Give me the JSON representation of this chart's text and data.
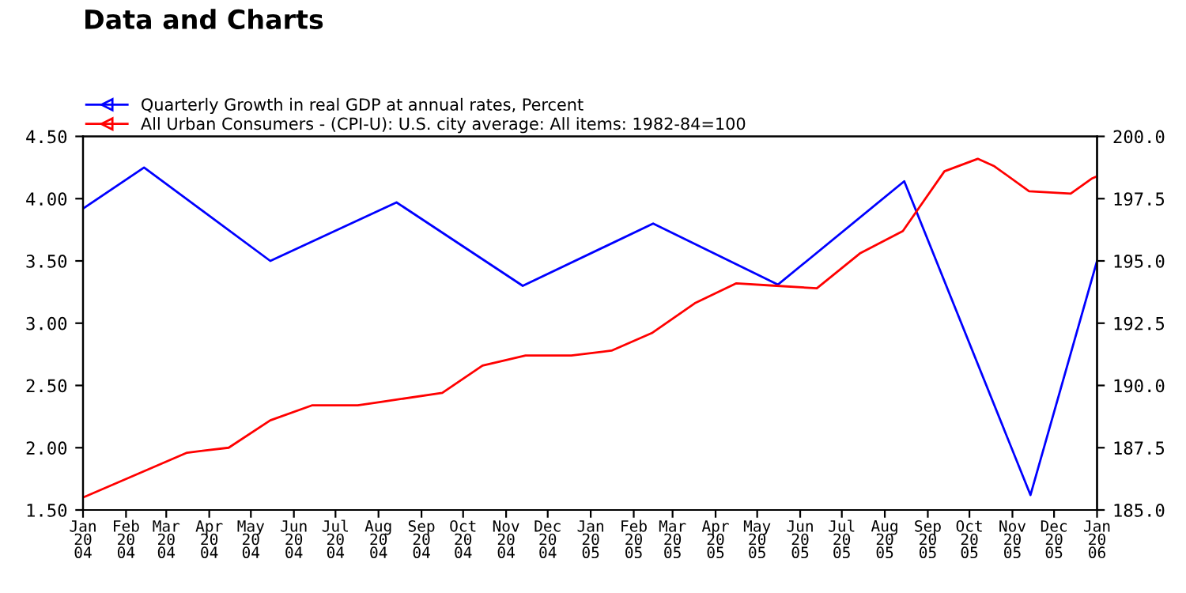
{
  "chart_data": {
    "type": "line",
    "title": "Data and Charts",
    "legend": "top left",
    "grid": false,
    "marker": "none",
    "line_style": "solid",
    "xlim": [
      "2004-01-01",
      "2006-01-01"
    ],
    "xticks": [
      {
        "value": "2004-01",
        "label": "Jan\n20\n04"
      },
      {
        "value": "2004-02",
        "label": "Feb\n20\n04"
      },
      {
        "value": "2004-03",
        "label": "Mar\n20\n04"
      },
      {
        "value": "2004-04",
        "label": "Apr\n20\n04"
      },
      {
        "value": "2004-05",
        "label": "May\n20\n04"
      },
      {
        "value": "2004-06",
        "label": "Jun\n20\n04"
      },
      {
        "value": "2004-07",
        "label": "Jul\n20\n04"
      },
      {
        "value": "2004-08",
        "label": "Aug\n20\n04"
      },
      {
        "value": "2004-09",
        "label": "Sep\n20\n04"
      },
      {
        "value": "2004-10",
        "label": "Oct\n20\n04"
      },
      {
        "value": "2004-11",
        "label": "Nov\n20\n04"
      },
      {
        "value": "2004-12",
        "label": "Dec\n20\n04"
      },
      {
        "value": "2005-01",
        "label": "Jan\n20\n05"
      },
      {
        "value": "2005-02",
        "label": "Feb\n20\n05"
      },
      {
        "value": "2005-03",
        "label": "Mar\n20\n05"
      },
      {
        "value": "2005-04",
        "label": "Apr\n20\n05"
      },
      {
        "value": "2005-05",
        "label": "May\n20\n05"
      },
      {
        "value": "2005-06",
        "label": "Jun\n20\n05"
      },
      {
        "value": "2005-07",
        "label": "Jul\n20\n05"
      },
      {
        "value": "2005-08",
        "label": "Aug\n20\n05"
      },
      {
        "value": "2005-09",
        "label": "Sep\n20\n05"
      },
      {
        "value": "2005-10",
        "label": "Oct\n20\n05"
      },
      {
        "value": "2005-11",
        "label": "Nov\n20\n05"
      },
      {
        "value": "2005-12",
        "label": "Dec\n20\n05"
      },
      {
        "value": "2006-01",
        "label": "Jan\n20\n06"
      }
    ],
    "ylim": [
      1.5,
      4.5
    ],
    "yticks": [
      {
        "value": 1.5,
        "label": "1.50"
      },
      {
        "value": 2.0,
        "label": "2.00"
      },
      {
        "value": 2.5,
        "label": "2.50"
      },
      {
        "value": 3.0,
        "label": "3.00"
      },
      {
        "value": 3.5,
        "label": "3.50"
      },
      {
        "value": 4.0,
        "label": "4.00"
      },
      {
        "value": 4.5,
        "label": "4.50"
      }
    ],
    "y2lim": [
      185,
      200
    ],
    "y2ticks": [
      {
        "value": 185,
        "label": "185.0"
      },
      {
        "value": 187.5,
        "label": "187.5"
      },
      {
        "value": 190,
        "label": "190.0"
      },
      {
        "value": 192.5,
        "label": "192.5"
      },
      {
        "value": 195,
        "label": "195.0"
      },
      {
        "value": 197.5,
        "label": "197.5"
      },
      {
        "value": 200,
        "label": "200.0"
      }
    ],
    "series": [
      {
        "name": "Quarterly Growth in real GDP at annual rates, Percent",
        "color": "#0000ff",
        "x": [
          "2004-01-01",
          "2004-02-14",
          "2004-05-15",
          "2004-08-14",
          "2004-11-13",
          "2005-02-15",
          "2005-05-16",
          "2005-08-15",
          "2005-11-14",
          "2006-01-01"
        ],
        "values": [
          3.92,
          4.25,
          3.5,
          3.97,
          3.3,
          3.8,
          3.31,
          4.14,
          1.62,
          3.5
        ]
      },
      {
        "name": "All Urban Consumers - (CPI-U): U.S. city average: All items: 1982-84=100",
        "color": "#ff0000",
        "axis": "y2",
        "x": [
          "2004-01-01",
          "2004-03-16",
          "2004-04-15",
          "2004-05-15",
          "2004-06-14",
          "2004-07-17",
          "2004-09-16",
          "2004-10-15",
          "2004-11-15",
          "2004-12-18",
          "2005-01-16",
          "2005-02-14",
          "2005-03-17",
          "2005-04-16",
          "2005-05-15",
          "2005-06-13",
          "2005-07-14",
          "2005-08-14",
          "2005-09-13",
          "2005-10-07",
          "2005-10-19",
          "2005-11-13",
          "2005-12-13",
          "2005-12-28",
          "2006-01-01"
        ],
        "values": [
          185.5,
          187.3,
          187.5,
          188.6,
          189.2,
          189.2,
          189.7,
          190.8,
          191.2,
          191.2,
          191.4,
          192.1,
          193.3,
          194.1,
          194.0,
          193.9,
          195.3,
          196.2,
          198.6,
          199.1,
          198.8,
          197.8,
          197.7,
          198.3,
          198.4
        ]
      }
    ]
  }
}
